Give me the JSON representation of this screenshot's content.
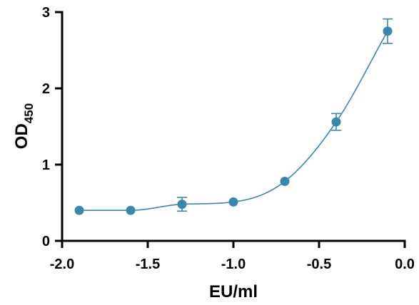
{
  "chart_data": {
    "type": "scatter",
    "title": "",
    "xlabel": "EU/ml",
    "ylabel": {
      "main": "OD",
      "subscript": "450"
    },
    "xlim": [
      -2.0,
      0.0
    ],
    "ylim": [
      0,
      3
    ],
    "xticks": [
      -2.0,
      -1.5,
      -1.0,
      -0.5,
      0.0
    ],
    "xtick_labels": [
      "-2.0",
      "-1.5",
      "-1.0",
      "-0.5",
      "0.0"
    ],
    "yticks": [
      0,
      1,
      2,
      3
    ],
    "ytick_labels": [
      "0",
      "1",
      "2",
      "3"
    ],
    "grid": false,
    "series": [
      {
        "x": [
          -1.9,
          -1.6,
          -1.3,
          -1.0,
          -0.7,
          -0.4,
          -0.1
        ],
        "y": [
          0.4,
          0.4,
          0.48,
          0.51,
          0.78,
          1.56,
          2.75
        ],
        "error": [
          0.0,
          0.0,
          0.09,
          0.0,
          0.0,
          0.11,
          0.16
        ],
        "fit": "sigmoidal curve"
      }
    ],
    "colors": {
      "series": "#3a87ad",
      "axes": "#000000"
    }
  }
}
